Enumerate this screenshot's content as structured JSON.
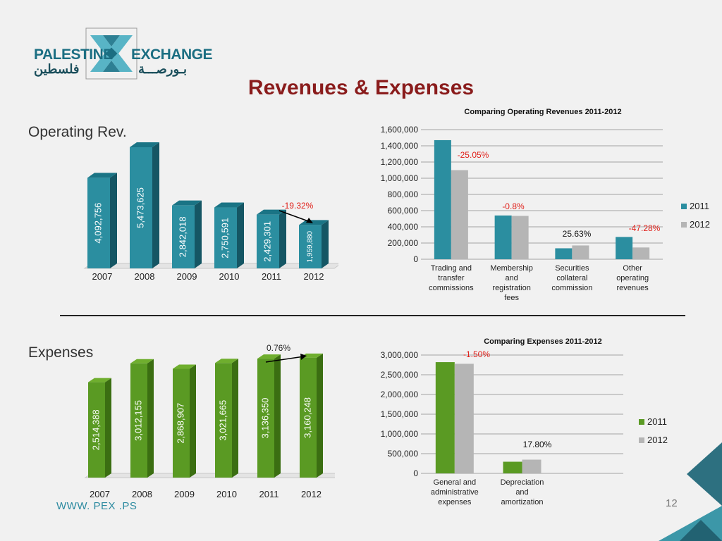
{
  "logo": {
    "en_left": "PALESTINE",
    "en_right": "EXCHANGE",
    "ar_left": "فلسطين",
    "ar_right": "بـورصـــة"
  },
  "title": "Revenues & Expenses",
  "footer": {
    "url": "WWW. PEX .PS",
    "page": "12"
  },
  "sections": {
    "operating_label": "Operating Rev.",
    "expenses_label": "Expenses"
  },
  "colors": {
    "teal": "#2b8ea0",
    "teal_dark": "#1b6f80",
    "green": "#5a9a23",
    "green_dark": "#3f7416",
    "gray": "#b5b5b5",
    "title_red": "#8a1c1c",
    "annot_red": "#e0201a"
  },
  "chart_data": [
    {
      "id": "operating-rev",
      "type": "bar",
      "style": "3d",
      "categories": [
        "2007",
        "2008",
        "2009",
        "2010",
        "2011",
        "2012"
      ],
      "values": [
        4092756,
        5473625,
        2842018,
        2750591,
        2429301,
        1959880
      ],
      "labels": [
        "4,092,756",
        "5,473,625",
        "2,842,018",
        "2,750,591",
        "2,429,301",
        "1,959,880"
      ],
      "annotation": "-19.32%"
    },
    {
      "id": "comparing-operating-revenues",
      "type": "bar",
      "title": "Comparing Operating Revenues 2011-2012",
      "categories": [
        "Trading and transfer commissions",
        "Membership and registration fees",
        "Securities collateral commission",
        "Other operating revenues"
      ],
      "category_lines": [
        [
          "Trading and",
          "transfer",
          "commissions"
        ],
        [
          "Membership",
          "and",
          "registration",
          "fees"
        ],
        [
          "Securities",
          "collateral",
          "commission"
        ],
        [
          "Other",
          "operating",
          "revenues"
        ]
      ],
      "series": [
        {
          "name": "2011",
          "values": [
            1470000,
            540000,
            135000,
            275000
          ]
        },
        {
          "name": "2012",
          "values": [
            1100000,
            535000,
            170000,
            145000
          ]
        }
      ],
      "annotations": [
        "-25.05%",
        "-0.8%",
        "25.63%",
        "-47.28%"
      ],
      "ylim": [
        0,
        1600000
      ],
      "yticks": [
        "0",
        "200,000",
        "400,000",
        "600,000",
        "800,000",
        "1,000,000",
        "1,200,000",
        "1,400,000",
        "1,600,000"
      ],
      "grid": true,
      "legend": "right"
    },
    {
      "id": "expenses",
      "type": "bar",
      "style": "3d",
      "categories": [
        "2007",
        "2008",
        "2009",
        "2010",
        "2011",
        "2012"
      ],
      "values": [
        2514388,
        3012155,
        2868907,
        3021665,
        3136350,
        3160248
      ],
      "labels": [
        "2,514,388",
        "3,012,155",
        "2,868,907",
        "3,021,665",
        "3,136,350",
        "3,160,248"
      ],
      "annotation": "0.76%"
    },
    {
      "id": "comparing-expenses",
      "type": "bar",
      "title": "Comparing Expenses 2011-2012",
      "categories": [
        "General and administrative expenses",
        "Depreciation and amortization",
        ""
      ],
      "category_lines": [
        [
          "General and",
          "administrative",
          "expenses"
        ],
        [
          "Depreciation",
          "and",
          "amortization"
        ],
        []
      ],
      "series": [
        {
          "name": "2011",
          "values": [
            2820000,
            295000,
            0
          ]
        },
        {
          "name": "2012",
          "values": [
            2778000,
            348000,
            0
          ]
        }
      ],
      "annotations": [
        "-1.50%",
        "17.80%"
      ],
      "ylim": [
        0,
        3000000
      ],
      "yticks": [
        "0",
        "500,000",
        "1,000,000",
        "1,500,000",
        "2,000,000",
        "2,500,000",
        "3,000,000"
      ],
      "grid": true,
      "legend": "right"
    }
  ]
}
